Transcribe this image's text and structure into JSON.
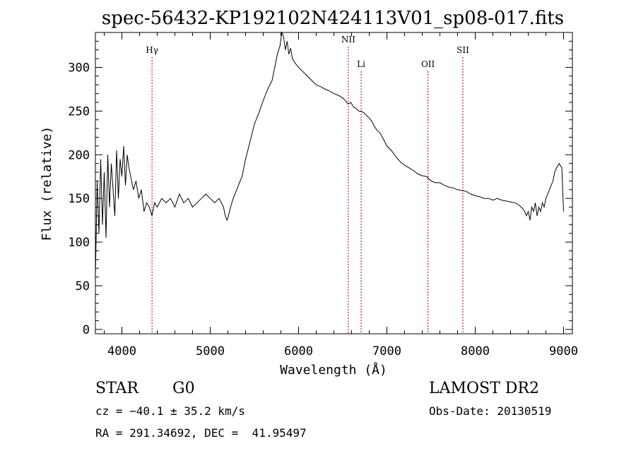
{
  "chart_data": {
    "type": "line",
    "title": "spec-56432-KP192102N424113V01_sp08-017.fits",
    "xlabel": "Wavelength (Å)",
    "ylabel": "Flux (relative)",
    "xlim": [
      3700,
      9100
    ],
    "ylim": [
      -5,
      340
    ],
    "xticks": [
      4000,
      5000,
      6000,
      7000,
      8000,
      9000
    ],
    "yticks": [
      0,
      50,
      100,
      150,
      200,
      250,
      300
    ],
    "grid": false,
    "series": [
      {
        "color": "#000000",
        "x": [
          3700,
          3720,
          3740,
          3760,
          3780,
          3800,
          3820,
          3840,
          3860,
          3880,
          3900,
          3920,
          3940,
          3960,
          3980,
          4000,
          4020,
          4040,
          4060,
          4080,
          4100,
          4130,
          4160,
          4190,
          4220,
          4250,
          4280,
          4310,
          4340,
          4370,
          4400,
          4450,
          4500,
          4550,
          4600,
          4650,
          4700,
          4750,
          4800,
          4850,
          4900,
          4950,
          5000,
          5050,
          5100,
          5150,
          5170,
          5190,
          5200,
          5230,
          5260,
          5300,
          5330,
          5360,
          5400,
          5450,
          5500,
          5550,
          5600,
          5650,
          5700,
          5730,
          5760,
          5790,
          5810,
          5830,
          5850,
          5870,
          5890,
          5910,
          5930,
          5960,
          6000,
          6050,
          6100,
          6150,
          6200,
          6250,
          6300,
          6350,
          6400,
          6450,
          6500,
          6530,
          6563,
          6590,
          6620,
          6650,
          6680,
          6708,
          6740,
          6770,
          6800,
          6830,
          6860,
          6890,
          6920,
          6960,
          7000,
          7050,
          7100,
          7150,
          7200,
          7250,
          7300,
          7350,
          7400,
          7450,
          7500,
          7550,
          7600,
          7650,
          7700,
          7750,
          7800,
          7850,
          7900,
          7950,
          8000,
          8050,
          8100,
          8150,
          8200,
          8250,
          8300,
          8350,
          8400,
          8450,
          8500,
          8520,
          8540,
          8560,
          8580,
          8600,
          8620,
          8640,
          8660,
          8680,
          8700,
          8720,
          8740,
          8760,
          8780,
          8800,
          8820,
          8840,
          8860,
          8880,
          8900,
          8920,
          8950,
          8980,
          9000
        ],
        "y": [
          60,
          170,
          110,
          195,
          120,
          180,
          105,
          200,
          140,
          190,
          160,
          130,
          205,
          150,
          195,
          175,
          210,
          165,
          200,
          185,
          175,
          160,
          170,
          150,
          160,
          135,
          145,
          140,
          130,
          145,
          140,
          150,
          145,
          150,
          140,
          155,
          145,
          150,
          140,
          145,
          150,
          155,
          150,
          145,
          150,
          140,
          130,
          125,
          128,
          140,
          150,
          160,
          168,
          175,
          195,
          215,
          235,
          248,
          262,
          275,
          285,
          300,
          315,
          325,
          345,
          335,
          320,
          330,
          315,
          322,
          310,
          305,
          300,
          295,
          290,
          285,
          280,
          278,
          275,
          273,
          270,
          268,
          265,
          262,
          258,
          260,
          255,
          253,
          250,
          250,
          248,
          245,
          242,
          238,
          232,
          228,
          225,
          218,
          210,
          205,
          198,
          192,
          188,
          185,
          182,
          178,
          176,
          175,
          170,
          168,
          168,
          165,
          163,
          162,
          160,
          159,
          158,
          155,
          153,
          152,
          150,
          150,
          148,
          150,
          148,
          147,
          146,
          145,
          142,
          140,
          138,
          135,
          130,
          135,
          125,
          140,
          135,
          145,
          130,
          140,
          135,
          145,
          140,
          150,
          155,
          160,
          165,
          170,
          180,
          185,
          190,
          185,
          135
        ]
      }
    ],
    "annotations": [
      {
        "label": "Hγ",
        "x": 4341
      },
      {
        "label": "NII",
        "x": 6563
      },
      {
        "label": "Li",
        "x": 6708
      },
      {
        "label": "OII",
        "x": 7465
      },
      {
        "label": "SII",
        "x": 7860
      }
    ]
  },
  "info": {
    "class": "STAR",
    "subclass": "G0",
    "cz": "cz = −40.1 ± 35.2 km/s",
    "coords": "RA = 291.34692, DEC =  41.95497",
    "survey": "LAMOST DR2",
    "obsdate": "Obs-Date: 20130519"
  }
}
